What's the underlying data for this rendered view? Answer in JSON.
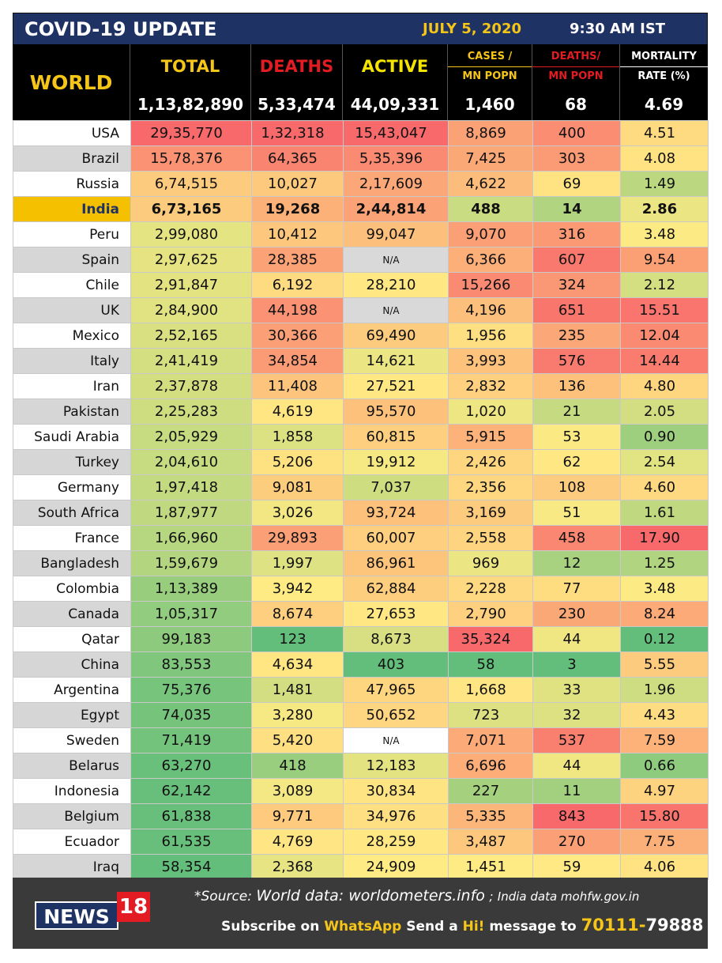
{
  "title": "COVID-19 UPDATE",
  "date": "JULY 5, 2020",
  "time": "9:30 AM IST",
  "colors": {
    "navy": "#1f3264",
    "gold": "#f5c518",
    "red": "#e31b23",
    "green": "#63be7b",
    "yellow": "#ffeb84",
    "salmon": "#f8696b"
  },
  "header": {
    "world_label": "WORLD",
    "columns": [
      {
        "line1": "TOTAL",
        "line2": ""
      },
      {
        "line1": "DEATHS",
        "line2": ""
      },
      {
        "line1": "ACTIVE",
        "line2": ""
      },
      {
        "line1": "CASES /",
        "line2": "MN POPN"
      },
      {
        "line1": "DEATHS/",
        "line2": "MN POPN"
      },
      {
        "line1": "MORTALITY",
        "line2": "RATE (%)"
      }
    ],
    "world_totals": [
      "1,13,82,890",
      "5,33,474",
      "44,09,331",
      "1,460",
      "68",
      "4.69"
    ]
  },
  "rows": [
    {
      "country": "USA",
      "values": [
        "29,35,770",
        "1,32,318",
        "15,43,047",
        "8,869",
        "400",
        "4.51"
      ]
    },
    {
      "country": "Brazil",
      "values": [
        "15,78,376",
        "64,365",
        "5,35,396",
        "7,425",
        "303",
        "4.08"
      ]
    },
    {
      "country": "Russia",
      "values": [
        "6,74,515",
        "10,027",
        "2,17,609",
        "4,622",
        "69",
        "1.49"
      ]
    },
    {
      "country": "India",
      "values": [
        "6,73,165",
        "19,268",
        "2,44,814",
        "488",
        "14",
        "2.86"
      ]
    },
    {
      "country": "Peru",
      "values": [
        "2,99,080",
        "10,412",
        "99,047",
        "9,070",
        "316",
        "3.48"
      ]
    },
    {
      "country": "Spain",
      "values": [
        "2,97,625",
        "28,385",
        "N/A",
        "6,366",
        "607",
        "9.54"
      ]
    },
    {
      "country": "Chile",
      "values": [
        "2,91,847",
        "6,192",
        "28,210",
        "15,266",
        "324",
        "2.12"
      ]
    },
    {
      "country": "UK",
      "values": [
        "2,84,900",
        "44,198",
        "N/A",
        "4,196",
        "651",
        "15.51"
      ]
    },
    {
      "country": "Mexico",
      "values": [
        "2,52,165",
        "30,366",
        "69,490",
        "1,956",
        "235",
        "12.04"
      ]
    },
    {
      "country": "Italy",
      "values": [
        "2,41,419",
        "34,854",
        "14,621",
        "3,993",
        "576",
        "14.44"
      ]
    },
    {
      "country": "Iran",
      "values": [
        "2,37,878",
        "11,408",
        "27,521",
        "2,832",
        "136",
        "4.80"
      ]
    },
    {
      "country": "Pakistan",
      "values": [
        "2,25,283",
        "4,619",
        "95,570",
        "1,020",
        "21",
        "2.05"
      ]
    },
    {
      "country": "Saudi Arabia",
      "values": [
        "2,05,929",
        "1,858",
        "60,815",
        "5,915",
        "53",
        "0.90"
      ]
    },
    {
      "country": "Turkey",
      "values": [
        "2,04,610",
        "5,206",
        "19,912",
        "2,426",
        "62",
        "2.54"
      ]
    },
    {
      "country": "Germany",
      "values": [
        "1,97,418",
        "9,081",
        "7,037",
        "2,356",
        "108",
        "4.60"
      ]
    },
    {
      "country": "South Africa",
      "values": [
        "1,87,977",
        "3,026",
        "93,724",
        "3,169",
        "51",
        "1.61"
      ]
    },
    {
      "country": "France",
      "values": [
        "1,66,960",
        "29,893",
        "60,007",
        "2,558",
        "458",
        "17.90"
      ]
    },
    {
      "country": "Bangladesh",
      "values": [
        "1,59,679",
        "1,997",
        "86,961",
        "969",
        "12",
        "1.25"
      ]
    },
    {
      "country": "Colombia",
      "values": [
        "1,13,389",
        "3,942",
        "62,884",
        "2,228",
        "77",
        "3.48"
      ]
    },
    {
      "country": "Canada",
      "values": [
        "1,05,317",
        "8,674",
        "27,653",
        "2,790",
        "230",
        "8.24"
      ]
    },
    {
      "country": "Qatar",
      "values": [
        "99,183",
        "123",
        "8,673",
        "35,324",
        "44",
        "0.12"
      ]
    },
    {
      "country": "China",
      "values": [
        "83,553",
        "4,634",
        "403",
        "58",
        "3",
        "5.55"
      ]
    },
    {
      "country": "Argentina",
      "values": [
        "75,376",
        "1,481",
        "47,965",
        "1,668",
        "33",
        "1.96"
      ]
    },
    {
      "country": "Egypt",
      "values": [
        "74,035",
        "3,280",
        "50,652",
        "723",
        "32",
        "4.43"
      ]
    },
    {
      "country": "Sweden",
      "values": [
        "71,419",
        "5,420",
        "N/A",
        "7,071",
        "537",
        "7.59"
      ]
    },
    {
      "country": "Belarus",
      "values": [
        "63,270",
        "418",
        "12,183",
        "6,696",
        "44",
        "0.66"
      ]
    },
    {
      "country": "Indonesia",
      "values": [
        "62,142",
        "3,089",
        "30,834",
        "227",
        "11",
        "4.97"
      ]
    },
    {
      "country": "Belgium",
      "values": [
        "61,838",
        "9,771",
        "34,976",
        "5,335",
        "843",
        "15.80"
      ]
    },
    {
      "country": "Ecuador",
      "values": [
        "61,535",
        "4,769",
        "28,259",
        "3,487",
        "270",
        "7.75"
      ]
    },
    {
      "country": "Iraq",
      "values": [
        "58,354",
        "2,368",
        "24,909",
        "1,451",
        "59",
        "4.06"
      ]
    }
  ],
  "highlight_country": "India",
  "footer": {
    "logo_text": "NEWS",
    "logo_number": "18",
    "source_prefix": "*Source:",
    "source_world": "World data: worldometers.info",
    "source_sep": ";",
    "source_india": "India data mohfw.gov.in",
    "subscribe_1": "Subscribe on",
    "subscribe_whatsapp": "WhatsApp",
    "subscribe_2": "Send a",
    "subscribe_hi": "Hi!",
    "subscribe_3": "message to",
    "phone_1": "70111-",
    "phone_2": "79888"
  }
}
